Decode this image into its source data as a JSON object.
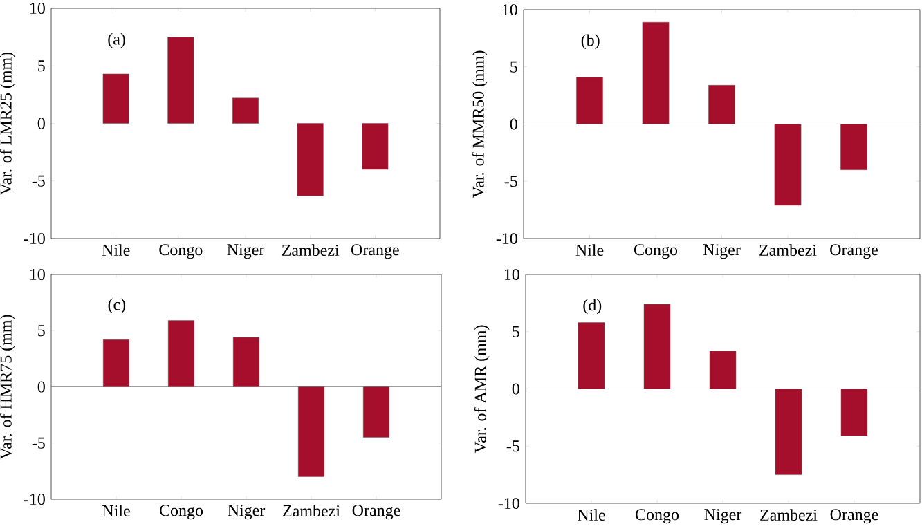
{
  "chart_data": [
    {
      "type": "bar",
      "ylabel": "Var. of LMR25 (mm)",
      "annotations": [
        "(a)"
      ],
      "categories": [
        "Nile",
        "Congo",
        "Niger",
        "Zambezi",
        "Orange"
      ],
      "values": [
        4.3,
        7.5,
        2.2,
        -6.3,
        -4.0
      ],
      "color": "#a50f2b",
      "ylim": [
        -10,
        10
      ],
      "yticks": [
        -10,
        -5,
        0,
        5,
        10
      ]
    },
    {
      "type": "bar",
      "ylabel": "Var. of MMR50 (mm)",
      "annotations": [
        "(b)"
      ],
      "categories": [
        "Nile",
        "Congo",
        "Niger",
        "Zambezi",
        "Orange"
      ],
      "values": [
        4.1,
        8.9,
        3.4,
        -7.1,
        -4.0
      ],
      "color": "#a50f2b",
      "ylim": [
        -10,
        10
      ],
      "yticks": [
        -10,
        -5,
        0,
        5,
        10
      ],
      "ref_lines": [
        {
          "axis": "y",
          "value": 0,
          "color": "#808080"
        }
      ]
    },
    {
      "type": "bar",
      "ylabel": "Var. of HMR75 (mm)",
      "annotations": [
        "(c)"
      ],
      "categories": [
        "Nile",
        "Congo",
        "Niger",
        "Zambezi",
        "Orange"
      ],
      "values": [
        4.2,
        5.9,
        4.4,
        -8.0,
        -4.5
      ],
      "color": "#a50f2b",
      "ylim": [
        -10,
        10
      ],
      "yticks": [
        -10,
        -5,
        0,
        5,
        10
      ],
      "ref_lines": [
        {
          "axis": "y",
          "value": 0,
          "color": "#808080"
        }
      ]
    },
    {
      "type": "bar",
      "ylabel": "Var. of AMR (mm)",
      "annotations": [
        "(d)"
      ],
      "categories": [
        "Nile",
        "Congo",
        "Niger",
        "Zambezi",
        "Orange"
      ],
      "values": [
        5.8,
        7.4,
        3.3,
        -7.5,
        -4.1
      ],
      "color": "#a50f2b",
      "ylim": [
        -10,
        10
      ],
      "yticks": [
        -10,
        -5,
        0,
        5,
        10
      ],
      "ref_lines": [
        {
          "axis": "y",
          "value": 0,
          "color": "#808080"
        }
      ]
    }
  ]
}
